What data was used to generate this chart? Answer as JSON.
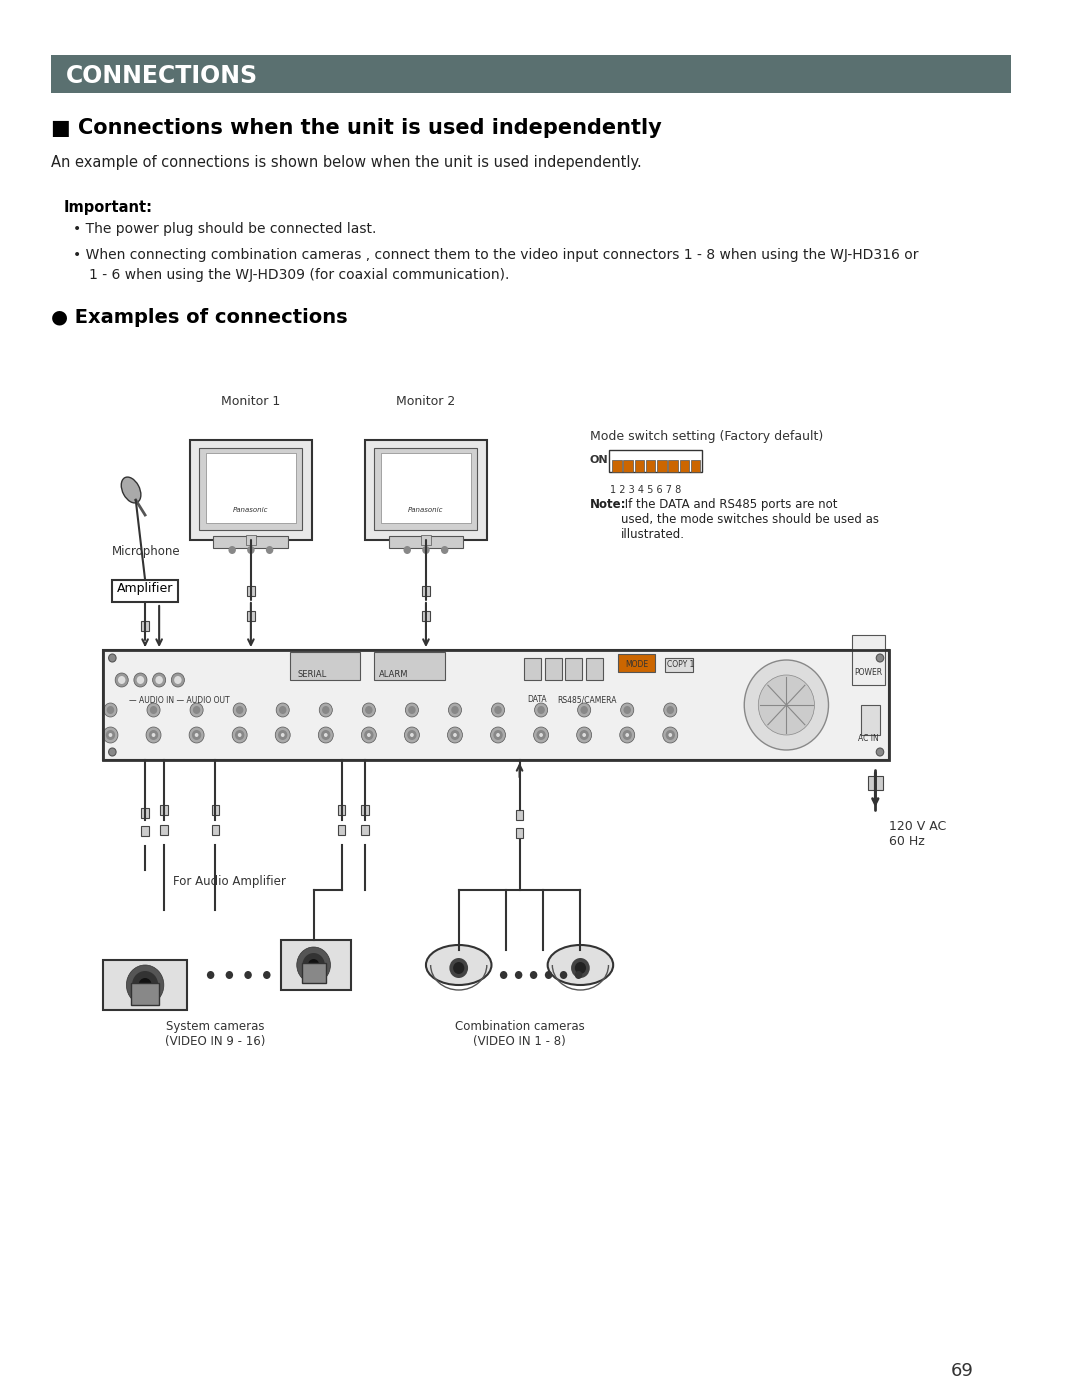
{
  "page_bg": "#ffffff",
  "header_bg": "#5a7070",
  "header_text": "CONNECTIONS",
  "header_text_color": "#ffffff",
  "section1_title": "■ Connections when the unit is used independently",
  "section1_subtitle": "An example of connections is shown below when the unit is used independently.",
  "important_label": "Important:",
  "bullet1": "The power plug should be connected last.",
  "bullet2_part1": "When connecting combination cameras , connect them to the video input connectors 1 - 8 when using the WJ-HD316 or",
  "bullet2_part2": "1 - 6 when using the WJ-HD309 (for coaxial communication).",
  "section2_title": "● Examples of connections",
  "page_number": "69",
  "monitor1_label": "Monitor 1",
  "monitor2_label": "Monitor 2",
  "microphone_label": "Microphone",
  "amplifier_label": "Amplifier",
  "mode_switch_label": "Mode switch setting (Factory default)",
  "mode_switch_on": "ON",
  "mode_switch_numbers": "1 2 3 4 5 6 7 8",
  "note_bold": "Note:",
  "note_text": " If the DATA and RS485 ports are not\nused, the mode switches should be used as\nillustrated.",
  "power_label": "120 V AC\n60 Hz",
  "audio_amp_label": "For Audio Amplifier",
  "system_cameras_label": "System cameras\n(VIDEO IN 9 - 16)",
  "combo_cameras_label": "Combination cameras\n(VIDEO IN 1 - 8)",
  "dvr_labels": [
    "— AUDIO IN — AUDIO OUT",
    "SERIAL",
    "ALARM",
    "DATA",
    "RS485/CAMERA",
    "MODE",
    "COPY 1",
    "POWER",
    "AC IN"
  ]
}
